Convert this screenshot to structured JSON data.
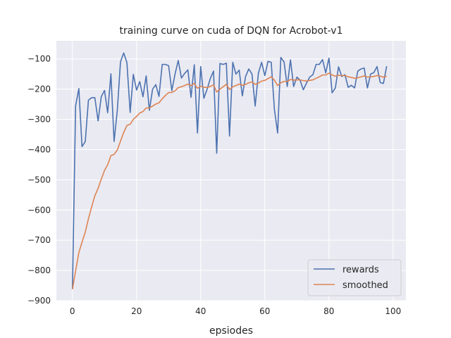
{
  "chart_data": {
    "type": "line",
    "title": "training curve on cuda of DQN for Acrobot-v1",
    "xlabel": "epsiodes",
    "ylabel": "",
    "xlim": [
      -5,
      104
    ],
    "ylim": [
      -900,
      -40
    ],
    "xticks": [
      0,
      20,
      40,
      60,
      80,
      100
    ],
    "yticks": [
      -900,
      -800,
      -700,
      -600,
      -500,
      -400,
      -300,
      -200,
      -100
    ],
    "grid": true,
    "legend_position": "lower-right",
    "colors": {
      "rewards": "#4c72b0",
      "smoothed": "#dd8452",
      "background": "#eaeaf2",
      "grid": "#ffffff"
    },
    "series": [
      {
        "name": "rewards",
        "values": [
          -862,
          -255,
          -198,
          -390,
          -373,
          -236,
          -228,
          -228,
          -305,
          -225,
          -204,
          -278,
          -149,
          -373,
          -269,
          -109,
          -80,
          -112,
          -277,
          -151,
          -203,
          -175,
          -225,
          -156,
          -270,
          -200,
          -185,
          -224,
          -118,
          -118,
          -122,
          -205,
          -150,
          -105,
          -163,
          -148,
          -136,
          -227,
          -119,
          -345,
          -125,
          -230,
          -200,
          -165,
          -140,
          -412,
          -115,
          -118,
          -114,
          -355,
          -111,
          -150,
          -137,
          -222,
          -158,
          -133,
          -150,
          -256,
          -147,
          -111,
          -155,
          -108,
          -111,
          -267,
          -345,
          -95,
          -110,
          -191,
          -103,
          -191,
          -160,
          -170,
          -202,
          -180,
          -160,
          -152,
          -118,
          -118,
          -102,
          -146,
          -97,
          -212,
          -196,
          -126,
          -158,
          -152,
          -194,
          -187,
          -196,
          -140,
          -133,
          -130,
          -196,
          -150,
          -145,
          -125,
          -178,
          -181,
          -124
        ]
      },
      {
        "name": "smoothed",
        "values": [
          -862,
          -801,
          -741,
          -706,
          -673,
          -629,
          -589,
          -553,
          -528,
          -498,
          -469,
          -450,
          -420,
          -416,
          -401,
          -372,
          -343,
          -320,
          -316,
          -300,
          -290,
          -279,
          -274,
          -262,
          -262,
          -256,
          -249,
          -245,
          -232,
          -221,
          -211,
          -211,
          -205,
          -195,
          -192,
          -188,
          -183,
          -188,
          -181,
          -197,
          -190,
          -194,
          -194,
          -191,
          -186,
          -209,
          -200,
          -192,
          -184,
          -201,
          -192,
          -188,
          -183,
          -187,
          -184,
          -179,
          -176,
          -184,
          -180,
          -173,
          -171,
          -165,
          -159,
          -170,
          -188,
          -179,
          -174,
          -175,
          -168,
          -170,
          -169,
          -169,
          -172,
          -173,
          -171,
          -169,
          -164,
          -159,
          -153,
          -153,
          -147,
          -153,
          -157,
          -154,
          -155,
          -155,
          -159,
          -161,
          -164,
          -162,
          -159,
          -156,
          -160,
          -159,
          -158,
          -155,
          -157,
          -160,
          -157
        ]
      }
    ]
  }
}
